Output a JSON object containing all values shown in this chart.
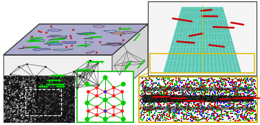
{
  "bg_color": "#ffffff",
  "grain_colors": [
    "#8888dd",
    "#7777cc",
    "#9999ee",
    "#cc88bb",
    "#88bbcc",
    "#aabbdd",
    "#cc99dd",
    "#77aacc",
    "#5566bb",
    "#aa77cc",
    "#99ccbb",
    "#cc5588",
    "#6688cc",
    "#bb88aa",
    "#99bbee",
    "#cc9988",
    "#77bbaa",
    "#aa99cc"
  ],
  "go_color": "#00cc00",
  "mg_color": "#00cc00",
  "b_color": "#ff3333",
  "o_color": "#3333ff",
  "atom_blue": "#2222ff",
  "atom_green": "#00bb00",
  "atom_red": "#cc0000",
  "front_face_color": "#e8e8e8",
  "right_face_color": "#d0d0d0",
  "box_edge_color": "#333333",
  "vortex_teal": "#40c8b0",
  "vortex_box_edge": "#333333",
  "yellow_line": "#ddbb00",
  "cs_box_edge": "#00bb00",
  "as_box_edge": "#ccaa00",
  "tem_dark": "#181818",
  "arrow_color": "#222222"
}
